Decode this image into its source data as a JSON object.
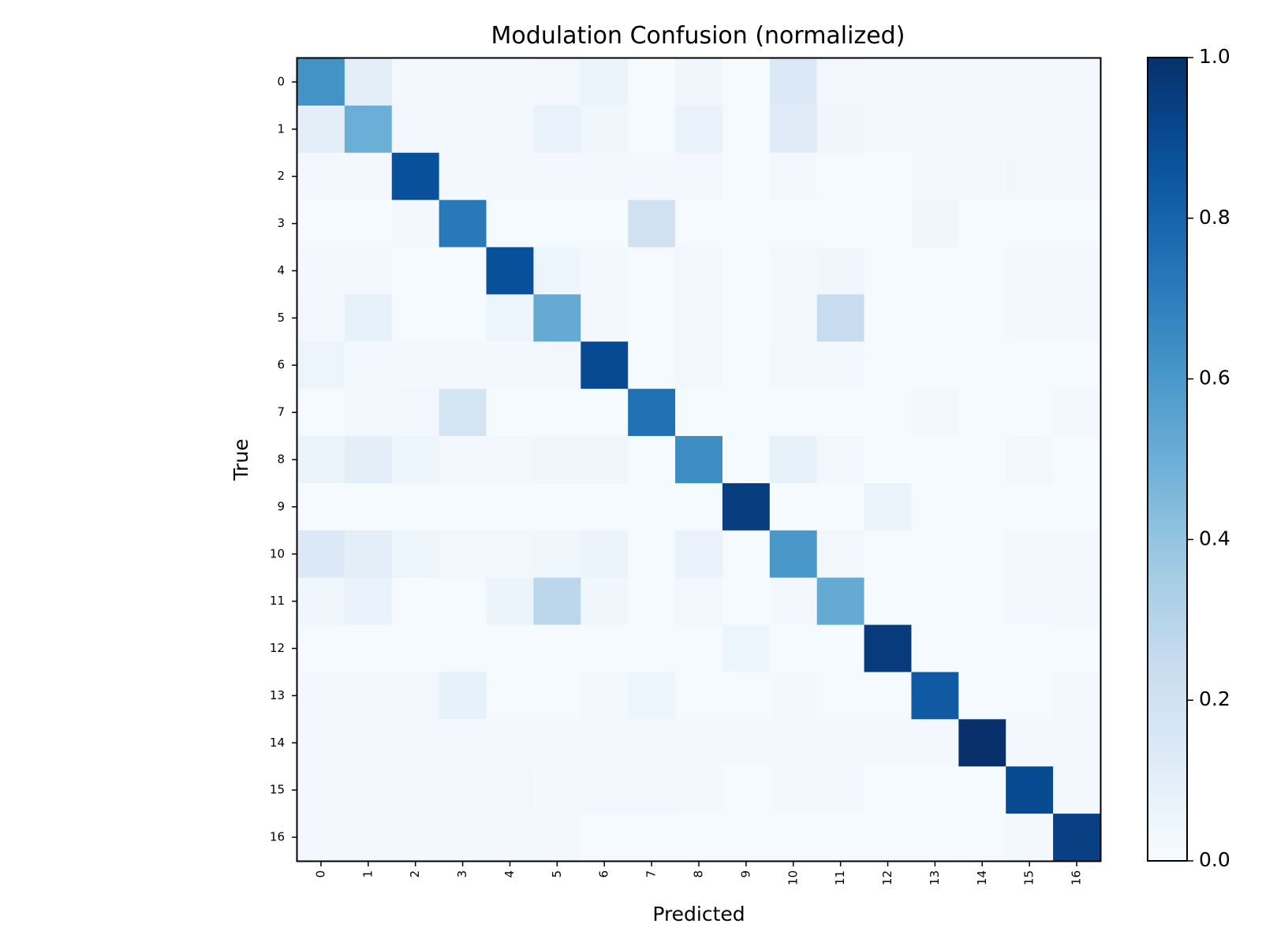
{
  "chart_data": {
    "type": "heatmap",
    "title": "Modulation Confusion (normalized)",
    "xlabel": "Predicted",
    "ylabel": "True",
    "x_categories": [
      "0",
      "1",
      "2",
      "3",
      "4",
      "5",
      "6",
      "7",
      "8",
      "9",
      "10",
      "11",
      "12",
      "13",
      "14",
      "15",
      "16"
    ],
    "y_categories": [
      "0",
      "1",
      "2",
      "3",
      "4",
      "5",
      "6",
      "7",
      "8",
      "9",
      "10",
      "11",
      "12",
      "13",
      "14",
      "15",
      "16"
    ],
    "colormap": "Blues",
    "colorbar": {
      "range": [
        0.0,
        1.0
      ],
      "ticks": [
        "0.0",
        "0.2",
        "0.4",
        "0.6",
        "0.8",
        "1.0"
      ]
    },
    "values": [
      [
        0.62,
        0.1,
        0.02,
        0.02,
        0.02,
        0.03,
        0.06,
        0.01,
        0.04,
        0.01,
        0.14,
        0.03,
        0.02,
        0.02,
        0.02,
        0.02,
        0.02
      ],
      [
        0.1,
        0.5,
        0.02,
        0.02,
        0.02,
        0.07,
        0.04,
        0.01,
        0.07,
        0.01,
        0.12,
        0.04,
        0.02,
        0.02,
        0.02,
        0.02,
        0.02
      ],
      [
        0.02,
        0.02,
        0.88,
        0.02,
        0.02,
        0.02,
        0.02,
        0.02,
        0.03,
        0.01,
        0.03,
        0.01,
        0.01,
        0.02,
        0.02,
        0.03,
        0.02
      ],
      [
        0.01,
        0.01,
        0.02,
        0.72,
        0.01,
        0.01,
        0.01,
        0.2,
        0.01,
        0.01,
        0.01,
        0.01,
        0.01,
        0.04,
        0.01,
        0.01,
        0.01
      ],
      [
        0.02,
        0.02,
        0.01,
        0.01,
        0.88,
        0.05,
        0.02,
        0.01,
        0.03,
        0.01,
        0.02,
        0.04,
        0.01,
        0.01,
        0.01,
        0.02,
        0.02
      ],
      [
        0.03,
        0.08,
        0.01,
        0.01,
        0.05,
        0.52,
        0.02,
        0.01,
        0.03,
        0.01,
        0.02,
        0.24,
        0.01,
        0.01,
        0.01,
        0.02,
        0.02
      ],
      [
        0.05,
        0.02,
        0.02,
        0.02,
        0.02,
        0.03,
        0.9,
        0.01,
        0.03,
        0.01,
        0.03,
        0.02,
        0.01,
        0.01,
        0.01,
        0.01,
        0.01
      ],
      [
        0.01,
        0.02,
        0.03,
        0.18,
        0.01,
        0.01,
        0.01,
        0.75,
        0.01,
        0.01,
        0.01,
        0.01,
        0.01,
        0.03,
        0.01,
        0.01,
        0.02
      ],
      [
        0.06,
        0.1,
        0.05,
        0.03,
        0.03,
        0.04,
        0.04,
        0.01,
        0.64,
        0.01,
        0.08,
        0.03,
        0.01,
        0.01,
        0.01,
        0.03,
        0.01
      ],
      [
        0.01,
        0.01,
        0.01,
        0.01,
        0.01,
        0.01,
        0.01,
        0.01,
        0.01,
        0.95,
        0.01,
        0.01,
        0.06,
        0.01,
        0.01,
        0.01,
        0.01
      ],
      [
        0.14,
        0.1,
        0.05,
        0.03,
        0.03,
        0.04,
        0.06,
        0.01,
        0.07,
        0.01,
        0.6,
        0.03,
        0.01,
        0.01,
        0.01,
        0.02,
        0.02
      ],
      [
        0.04,
        0.07,
        0.01,
        0.01,
        0.06,
        0.28,
        0.04,
        0.01,
        0.03,
        0.01,
        0.02,
        0.52,
        0.01,
        0.01,
        0.01,
        0.02,
        0.03
      ],
      [
        0.01,
        0.01,
        0.01,
        0.01,
        0.01,
        0.01,
        0.01,
        0.01,
        0.01,
        0.05,
        0.01,
        0.01,
        0.96,
        0.01,
        0.01,
        0.01,
        0.01
      ],
      [
        0.02,
        0.02,
        0.03,
        0.08,
        0.01,
        0.01,
        0.02,
        0.05,
        0.01,
        0.01,
        0.02,
        0.01,
        0.01,
        0.84,
        0.01,
        0.01,
        0.02
      ],
      [
        0.02,
        0.02,
        0.02,
        0.02,
        0.02,
        0.02,
        0.02,
        0.02,
        0.02,
        0.02,
        0.02,
        0.02,
        0.02,
        0.02,
        1.0,
        0.02,
        0.02
      ],
      [
        0.02,
        0.03,
        0.03,
        0.03,
        0.03,
        0.02,
        0.03,
        0.03,
        0.02,
        0.01,
        0.02,
        0.02,
        0.01,
        0.01,
        0.01,
        0.9,
        0.02
      ],
      [
        0.02,
        0.02,
        0.02,
        0.02,
        0.02,
        0.02,
        0.01,
        0.01,
        0.01,
        0.01,
        0.01,
        0.01,
        0.01,
        0.01,
        0.01,
        0.02,
        0.94
      ]
    ]
  }
}
